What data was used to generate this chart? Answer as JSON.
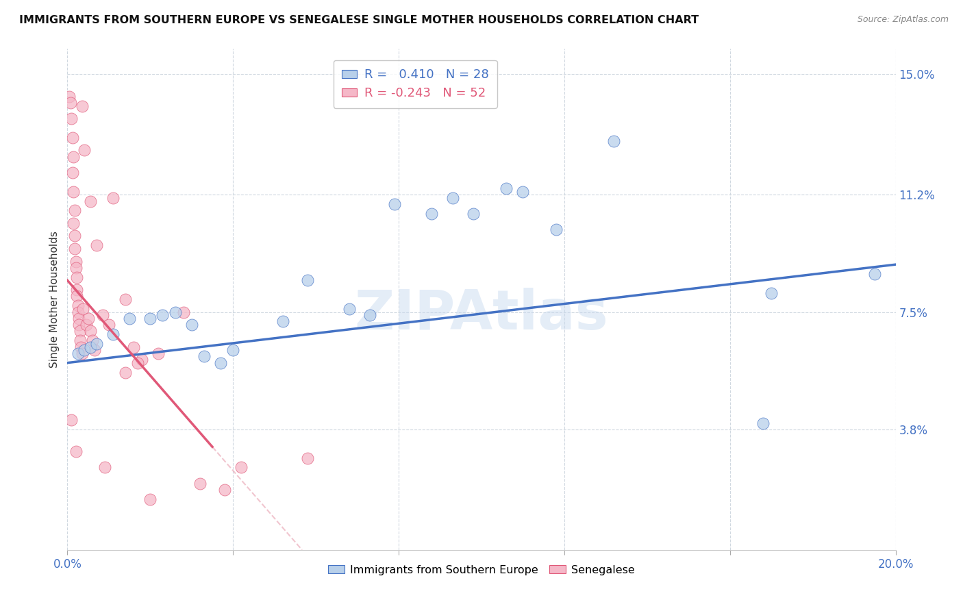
{
  "title": "IMMIGRANTS FROM SOUTHERN EUROPE VS SENEGALESE SINGLE MOTHER HOUSEHOLDS CORRELATION CHART",
  "source": "Source: ZipAtlas.com",
  "ylabel": "Single Mother Households",
  "yticks": [
    3.8,
    7.5,
    11.2,
    15.0
  ],
  "ytick_labels": [
    "3.8%",
    "7.5%",
    "11.2%",
    "15.0%"
  ],
  "xtick_positions": [
    0,
    4,
    8,
    12,
    16,
    20
  ],
  "xmin": 0.0,
  "xmax": 20.0,
  "ymin": 0.0,
  "ymax": 15.8,
  "legend1_label": "Immigrants from Southern Europe",
  "legend2_label": "Senegalese",
  "r1": 0.41,
  "n1": 28,
  "r2": -0.243,
  "n2": 52,
  "blue_color": "#b8d0ea",
  "pink_color": "#f5b8c8",
  "blue_line_color": "#4472c4",
  "pink_line_color": "#e05878",
  "pink_dash_color": "#e8a0b0",
  "blue_scatter": [
    [
      0.25,
      6.2
    ],
    [
      0.4,
      6.3
    ],
    [
      0.55,
      6.4
    ],
    [
      0.7,
      6.5
    ],
    [
      1.1,
      6.8
    ],
    [
      1.5,
      7.3
    ],
    [
      2.0,
      7.3
    ],
    [
      2.3,
      7.4
    ],
    [
      2.6,
      7.5
    ],
    [
      3.0,
      7.1
    ],
    [
      3.3,
      6.1
    ],
    [
      3.7,
      5.9
    ],
    [
      4.0,
      6.3
    ],
    [
      5.2,
      7.2
    ],
    [
      5.8,
      8.5
    ],
    [
      6.8,
      7.6
    ],
    [
      7.3,
      7.4
    ],
    [
      7.9,
      10.9
    ],
    [
      8.8,
      10.6
    ],
    [
      9.3,
      11.1
    ],
    [
      9.8,
      10.6
    ],
    [
      10.6,
      11.4
    ],
    [
      11.0,
      11.3
    ],
    [
      11.8,
      10.1
    ],
    [
      13.2,
      12.9
    ],
    [
      16.8,
      4.0
    ],
    [
      17.0,
      8.1
    ],
    [
      19.5,
      8.7
    ]
  ],
  "pink_scatter": [
    [
      0.05,
      14.3
    ],
    [
      0.08,
      14.1
    ],
    [
      0.1,
      13.6
    ],
    [
      0.12,
      13.0
    ],
    [
      0.15,
      12.4
    ],
    [
      0.12,
      11.9
    ],
    [
      0.15,
      11.3
    ],
    [
      0.18,
      10.7
    ],
    [
      0.15,
      10.3
    ],
    [
      0.18,
      9.9
    ],
    [
      0.18,
      9.5
    ],
    [
      0.2,
      9.1
    ],
    [
      0.2,
      8.9
    ],
    [
      0.22,
      8.6
    ],
    [
      0.22,
      8.2
    ],
    [
      0.22,
      8.0
    ],
    [
      0.25,
      7.7
    ],
    [
      0.25,
      7.5
    ],
    [
      0.28,
      7.3
    ],
    [
      0.28,
      7.1
    ],
    [
      0.3,
      6.9
    ],
    [
      0.3,
      6.6
    ],
    [
      0.32,
      6.4
    ],
    [
      0.35,
      6.2
    ],
    [
      0.38,
      7.6
    ],
    [
      0.45,
      7.1
    ],
    [
      0.5,
      7.3
    ],
    [
      0.55,
      6.9
    ],
    [
      0.6,
      6.6
    ],
    [
      0.65,
      6.3
    ],
    [
      0.85,
      7.4
    ],
    [
      1.0,
      7.1
    ],
    [
      1.1,
      11.1
    ],
    [
      1.4,
      7.9
    ],
    [
      1.6,
      6.4
    ],
    [
      1.8,
      6.0
    ],
    [
      2.2,
      6.2
    ],
    [
      2.8,
      7.5
    ],
    [
      0.1,
      4.1
    ],
    [
      0.2,
      3.1
    ],
    [
      0.9,
      2.6
    ],
    [
      2.0,
      1.6
    ],
    [
      1.4,
      5.6
    ],
    [
      1.7,
      5.9
    ],
    [
      0.35,
      14.0
    ],
    [
      0.4,
      12.6
    ],
    [
      0.55,
      11.0
    ],
    [
      0.7,
      9.6
    ],
    [
      3.2,
      2.1
    ],
    [
      3.8,
      1.9
    ],
    [
      4.2,
      2.6
    ],
    [
      5.8,
      2.9
    ]
  ],
  "watermark": "ZIPAtlas",
  "background_color": "#ffffff",
  "grid_color": "#d0d8e0",
  "blue_line_intercept": 5.9,
  "blue_line_slope": 0.155,
  "pink_line_intercept": 8.5,
  "pink_line_slope": -1.5,
  "pink_solid_xmax": 3.5
}
